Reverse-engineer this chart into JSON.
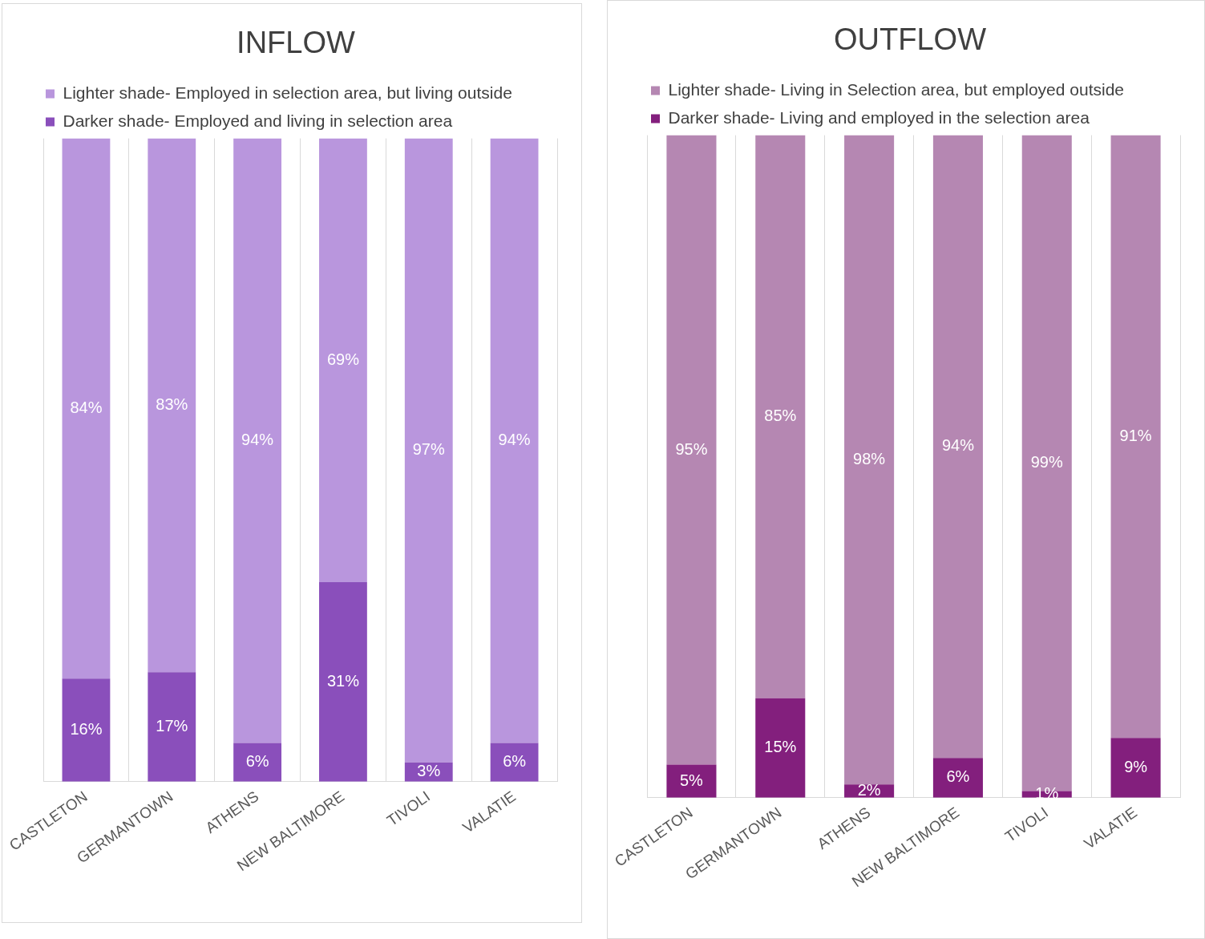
{
  "chart_data": [
    {
      "type": "bar",
      "title": "INFLOW",
      "categories": [
        "CASTLETON",
        "GERMANTOWN",
        "ATHENS",
        "NEW BALTIMORE",
        "TIVOLI",
        "VALATIE"
      ],
      "stacked": true,
      "legend": "top",
      "grid": "x",
      "tick_labels": "x",
      "series": [
        {
          "name": "Darker shade- Employed and living in selection area",
          "color": "#8a4fbb",
          "values": [
            16,
            17,
            6,
            31,
            3,
            6
          ],
          "value_labels": [
            "16%",
            "17%",
            "6%",
            "31%",
            "3%",
            "6%"
          ]
        },
        {
          "name": "Lighter shade- Employed in selection area, but living outside",
          "color": "#b996dd",
          "values": [
            84,
            83,
            94,
            69,
            97,
            94
          ],
          "value_labels": [
            "84%",
            "83%",
            "94%",
            "69%",
            "97%",
            "94%"
          ]
        }
      ]
    },
    {
      "type": "bar",
      "title": "OUTFLOW",
      "categories": [
        "CASTLETON",
        "GERMANTOWN",
        "ATHENS",
        "NEW BALTIMORE",
        "TIVOLI",
        "VALATIE"
      ],
      "stacked": true,
      "legend": "top",
      "grid": "x",
      "tick_labels": "x",
      "series": [
        {
          "name": "Darker shade- Living and employed in the selection area",
          "color": "#831f7d",
          "values": [
            5,
            15,
            2,
            6,
            1,
            9
          ],
          "value_labels": [
            "5%",
            "15%",
            "2%",
            "6%",
            "1%",
            "9%"
          ]
        },
        {
          "name": "Lighter shade- Living in Selection area, but employed outside",
          "color": "#b587b2",
          "values": [
            95,
            85,
            98,
            94,
            99,
            91
          ],
          "value_labels": [
            "95%",
            "85%",
            "98%",
            "94%",
            "99%",
            "91%"
          ]
        }
      ]
    }
  ]
}
